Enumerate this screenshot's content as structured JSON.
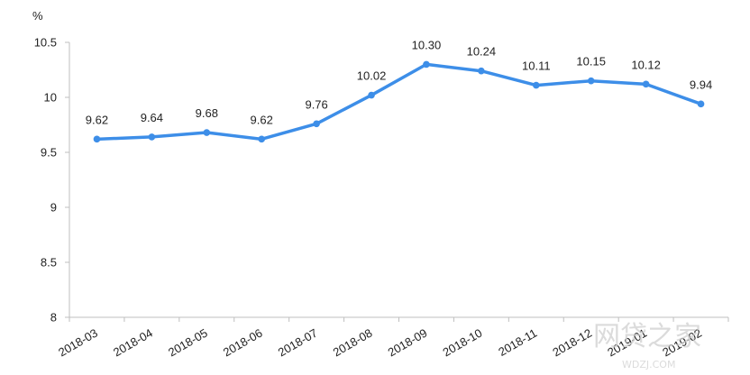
{
  "chart_data": {
    "type": "line",
    "y_unit": "%",
    "x": [
      "2018-03",
      "2018-04",
      "2018-05",
      "2018-06",
      "2018-07",
      "2018-08",
      "2018-09",
      "2018-10",
      "2018-11",
      "2018-12",
      "2019-01",
      "2019-02"
    ],
    "series": [
      {
        "values": [
          9.62,
          9.64,
          9.68,
          9.62,
          9.76,
          10.02,
          10.3,
          10.24,
          10.11,
          10.15,
          10.12,
          9.94
        ],
        "labels": [
          "9.62",
          "9.64",
          "9.68",
          "9.62",
          "9.76",
          "10.02",
          "10.30",
          "10.24",
          "10.11",
          "10.15",
          "10.12",
          "9.94"
        ]
      }
    ],
    "ylim": [
      8,
      10.5
    ],
    "yticks": [
      "8",
      "8.5",
      "9",
      "9.5",
      "10",
      "10.5"
    ],
    "ytick_values": [
      8,
      8.5,
      9,
      9.5,
      10,
      10.5
    ],
    "grid": false,
    "line_color": "#3d8ee8",
    "axis_color": "#bfbfbf"
  },
  "watermark": {
    "text": "网贷之家",
    "subtext": "WDZJ.COM"
  }
}
